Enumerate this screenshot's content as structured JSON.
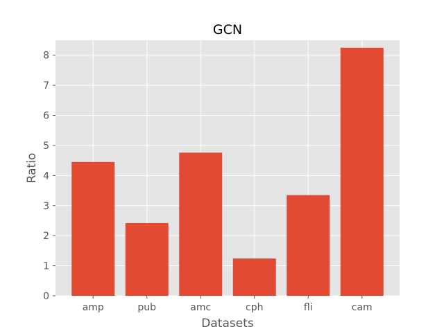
{
  "chart_data": {
    "type": "bar",
    "title": "GCN",
    "xlabel": "Datasets",
    "ylabel": "Ratio",
    "categories": [
      "amp",
      "pub",
      "amc",
      "cph",
      "fli",
      "cam"
    ],
    "values": [
      4.45,
      2.42,
      4.76,
      1.24,
      3.35,
      8.25
    ],
    "ylim": [
      0,
      8.5
    ],
    "yticks": [
      "0",
      "1",
      "2",
      "3",
      "4",
      "5",
      "6",
      "7",
      "8"
    ],
    "grid": true,
    "bar_color": "#E24A33",
    "plot_background": "#E5E5E5",
    "grid_color": "#FFFFFF"
  }
}
